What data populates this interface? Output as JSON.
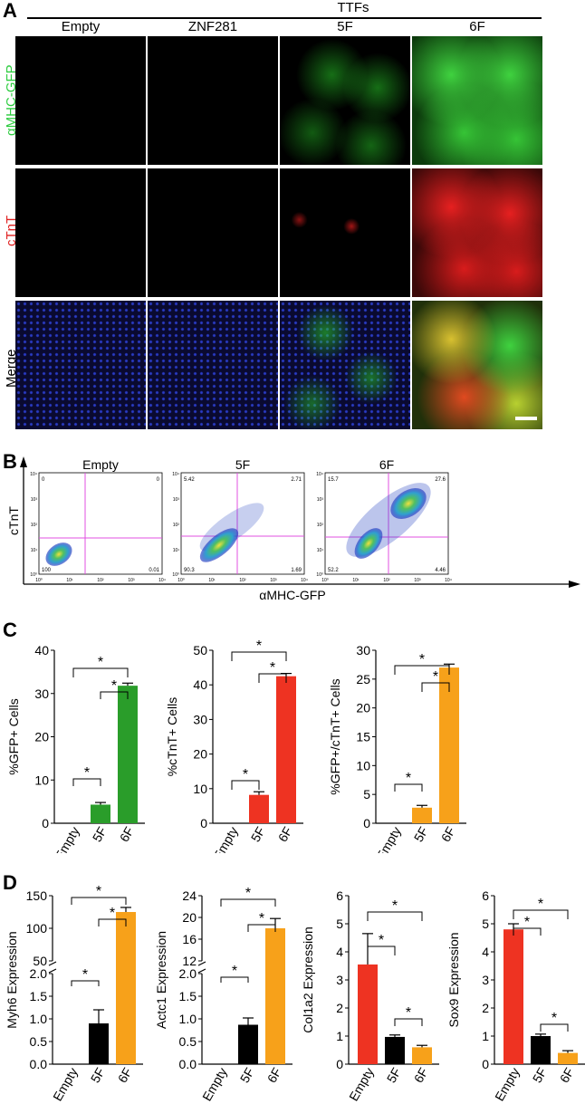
{
  "panels": {
    "a": "A",
    "b": "B",
    "c": "C",
    "d": "D"
  },
  "panelA": {
    "group_label": "TTFs",
    "columns": [
      "Empty",
      "ZNF281",
      "5F",
      "6F"
    ],
    "rows": [
      {
        "label": "αMHC-GFP",
        "color": "#2ecc40"
      },
      {
        "label": "cTnT",
        "color": "#e02020"
      },
      {
        "label": "Merge",
        "color": "#000000"
      }
    ]
  },
  "panelB": {
    "x_axis_label": "αMHC-GFP",
    "y_axis_label": "cTnT",
    "tick_labels": [
      "10⁰",
      "10¹",
      "10²",
      "10³",
      "10⁴"
    ],
    "plots": [
      {
        "title": "Empty",
        "q_ul": "0",
        "q_ur": "0",
        "q_ll": "100",
        "q_lr": "0.01"
      },
      {
        "title": "5F",
        "q_ul": "5.42",
        "q_ur": "2.71",
        "q_ll": "90.3",
        "q_lr": "1.69"
      },
      {
        "title": "6F",
        "q_ul": "15.7",
        "q_ur": "27.6",
        "q_ll": "52.2",
        "q_lr": "4.46"
      }
    ]
  },
  "chart_data": [
    {
      "type": "bar",
      "ylabel": "%GFP+ Cells",
      "categories": [
        "Empty",
        "5F",
        "6F"
      ],
      "values": [
        0,
        4.3,
        31.8
      ],
      "errors": [
        0,
        0.5,
        0.6
      ],
      "colors": [
        "#2a9d2a",
        "#2a9d2a",
        "#2a9d2a"
      ],
      "ylim": [
        0,
        40
      ],
      "yticks": [
        "0",
        "10",
        "20",
        "30",
        "40"
      ],
      "significance": [
        "*",
        "*",
        "*"
      ]
    },
    {
      "type": "bar",
      "ylabel": "%cTnT+ Cells",
      "categories": [
        "Empty",
        "5F",
        "6F"
      ],
      "values": [
        0,
        8.2,
        42.5
      ],
      "errors": [
        0,
        0.9,
        0.8
      ],
      "colors": [
        "#ee3322",
        "#ee3322",
        "#ee3322"
      ],
      "ylim": [
        0,
        50
      ],
      "yticks": [
        "0",
        "10",
        "20",
        "30",
        "40",
        "50"
      ],
      "significance": [
        "*",
        "*",
        "*"
      ]
    },
    {
      "type": "bar",
      "ylabel": "%GFP+/cTnT+ Cells",
      "categories": [
        "Empty",
        "5F",
        "6F"
      ],
      "values": [
        0,
        2.7,
        27.0
      ],
      "errors": [
        0,
        0.4,
        0.6
      ],
      "colors": [
        "#f7a11a",
        "#f7a11a",
        "#f7a11a"
      ],
      "ylim": [
        0,
        30
      ],
      "yticks": [
        "0",
        "5",
        "10",
        "15",
        "20",
        "25",
        "30"
      ],
      "significance": [
        "*",
        "*",
        "*"
      ]
    },
    {
      "type": "bar",
      "ylabel": "Myh6 Expression",
      "categories": [
        "Empty",
        "5F",
        "6F"
      ],
      "values": [
        0,
        0.9,
        125
      ],
      "errors": [
        0,
        0.3,
        7
      ],
      "colors": [
        "#ee3322",
        "#000000",
        "#f7a11a"
      ],
      "broken_axis": {
        "lower_ticks": [
          "0.0",
          "0.5",
          "1.0",
          "1.5",
          "2.0"
        ],
        "upper_ticks": [
          "50",
          "100",
          "150"
        ]
      },
      "significance": [
        "*",
        "*",
        "*"
      ]
    },
    {
      "type": "bar",
      "ylabel": "Actc1 Expression",
      "categories": [
        "Empty",
        "5F",
        "6F"
      ],
      "values": [
        0,
        0.87,
        18.0
      ],
      "errors": [
        0,
        0.15,
        1.8
      ],
      "colors": [
        "#ee3322",
        "#000000",
        "#f7a11a"
      ],
      "broken_axis": {
        "lower_ticks": [
          "0.0",
          "0.5",
          "1.0",
          "1.5",
          "2.0"
        ],
        "upper_ticks": [
          "12",
          "16",
          "20",
          "24"
        ]
      },
      "significance": [
        "*",
        "*",
        "*"
      ]
    },
    {
      "type": "bar",
      "ylabel": "Col1a2 Expression",
      "categories": [
        "Empty",
        "5F",
        "6F"
      ],
      "values": [
        3.55,
        0.97,
        0.6
      ],
      "errors": [
        1.1,
        0.07,
        0.07
      ],
      "colors": [
        "#ee3322",
        "#000000",
        "#f7a11a"
      ],
      "ylim": [
        0,
        6
      ],
      "yticks": [
        "0",
        "1",
        "2",
        "3",
        "4",
        "5",
        "6"
      ],
      "significance": [
        "*",
        "*",
        "*"
      ]
    },
    {
      "type": "bar",
      "ylabel": "Sox9 Expression",
      "categories": [
        "Empty",
        "5F",
        "6F"
      ],
      "values": [
        4.8,
        1.0,
        0.4
      ],
      "errors": [
        0.2,
        0.07,
        0.08
      ],
      "colors": [
        "#ee3322",
        "#000000",
        "#f7a11a"
      ],
      "ylim": [
        0,
        6
      ],
      "yticks": [
        "0",
        "1",
        "2",
        "3",
        "4",
        "5",
        "6"
      ],
      "significance": [
        "*",
        "*",
        "*"
      ]
    }
  ]
}
